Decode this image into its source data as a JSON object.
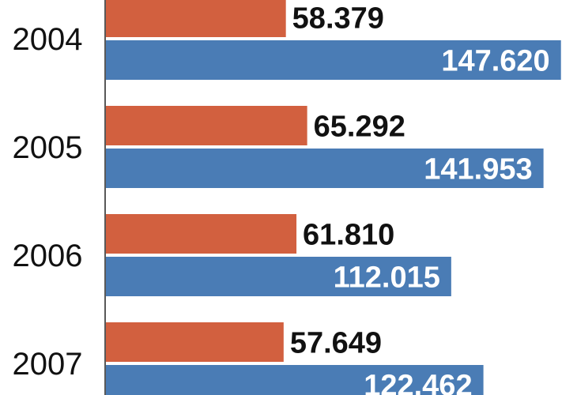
{
  "chart_data": {
    "type": "bar",
    "orientation": "horizontal",
    "categories": [
      "2004",
      "2005",
      "2006",
      "2007"
    ],
    "series": [
      {
        "color": "#d2603f",
        "values": [
          58.379,
          65.292,
          61.81,
          57.649
        ],
        "labels": [
          "58.379",
          "65.292",
          "61.810",
          "57.649"
        ]
      },
      {
        "color": "#4a7cb5",
        "values": [
          147.62,
          141.953,
          112.015,
          122.462
        ],
        "labels": [
          "147.620",
          "141.953",
          "112.015",
          "122.462"
        ]
      }
    ],
    "value_label_colors": {
      "outside": "#111111",
      "inside": "#ffffff"
    },
    "xlim": [
      0,
      150
    ],
    "grid": false,
    "title": "",
    "xlabel": "",
    "ylabel": ""
  }
}
